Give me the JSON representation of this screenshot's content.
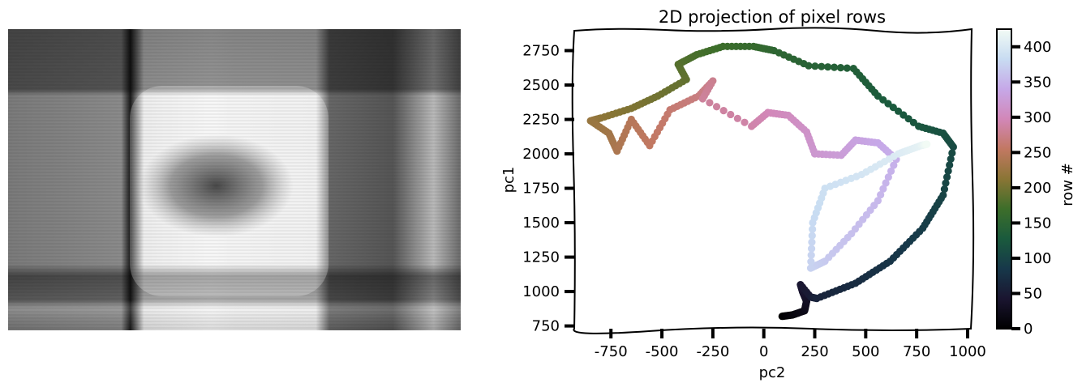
{
  "chart_data": [
    {
      "type": "image",
      "title": "",
      "description": "grayscale image"
    },
    {
      "type": "scatter",
      "title": "2D projection of pixel rows",
      "xlabel": "pc2",
      "ylabel": "pc1",
      "xlim": [
        -930,
        1020
      ],
      "ylim": [
        730,
        2900
      ],
      "xticks": [
        -750,
        -500,
        -250,
        0,
        250,
        500,
        750,
        1000
      ],
      "yticks": [
        750,
        1000,
        1250,
        1500,
        1750,
        2000,
        2250,
        2500,
        2750
      ],
      "colorbar": {
        "label": "row #",
        "range": [
          0,
          425
        ],
        "ticks": [
          0,
          50,
          100,
          150,
          200,
          250,
          300,
          350,
          400
        ],
        "colormap": "cubehelix"
      },
      "path_points": [
        {
          "row": 0,
          "x": 90,
          "y": 820
        },
        {
          "row": 10,
          "x": 140,
          "y": 830
        },
        {
          "row": 20,
          "x": 200,
          "y": 860
        },
        {
          "row": 30,
          "x": 210,
          "y": 930
        },
        {
          "row": 40,
          "x": 190,
          "y": 1000
        },
        {
          "row": 45,
          "x": 180,
          "y": 1050
        },
        {
          "row": 50,
          "x": 230,
          "y": 960
        },
        {
          "row": 60,
          "x": 260,
          "y": 950
        },
        {
          "row": 70,
          "x": 450,
          "y": 1060
        },
        {
          "row": 80,
          "x": 620,
          "y": 1220
        },
        {
          "row": 90,
          "x": 780,
          "y": 1460
        },
        {
          "row": 100,
          "x": 880,
          "y": 1700
        },
        {
          "row": 108,
          "x": 930,
          "y": 2050
        },
        {
          "row": 115,
          "x": 880,
          "y": 2150
        },
        {
          "row": 122,
          "x": 760,
          "y": 2200
        },
        {
          "row": 130,
          "x": 560,
          "y": 2420
        },
        {
          "row": 138,
          "x": 440,
          "y": 2620
        },
        {
          "row": 145,
          "x": 220,
          "y": 2640
        },
        {
          "row": 152,
          "x": 50,
          "y": 2750
        },
        {
          "row": 160,
          "x": -50,
          "y": 2780
        },
        {
          "row": 167,
          "x": -200,
          "y": 2780
        },
        {
          "row": 175,
          "x": -330,
          "y": 2720
        },
        {
          "row": 183,
          "x": -420,
          "y": 2650
        },
        {
          "row": 190,
          "x": -380,
          "y": 2540
        },
        {
          "row": 198,
          "x": -520,
          "y": 2420
        },
        {
          "row": 206,
          "x": -650,
          "y": 2330
        },
        {
          "row": 214,
          "x": -800,
          "y": 2260
        },
        {
          "row": 222,
          "x": -850,
          "y": 2240
        },
        {
          "row": 230,
          "x": -760,
          "y": 2150
        },
        {
          "row": 238,
          "x": -720,
          "y": 2020
        },
        {
          "row": 246,
          "x": -650,
          "y": 2250
        },
        {
          "row": 254,
          "x": -560,
          "y": 2060
        },
        {
          "row": 262,
          "x": -460,
          "y": 2320
        },
        {
          "row": 270,
          "x": -320,
          "y": 2420
        },
        {
          "row": 277,
          "x": -250,
          "y": 2530
        },
        {
          "row": 283,
          "x": -300,
          "y": 2400
        },
        {
          "row": 290,
          "x": -60,
          "y": 2200
        },
        {
          "row": 297,
          "x": 20,
          "y": 2300
        },
        {
          "row": 304,
          "x": 120,
          "y": 2280
        },
        {
          "row": 311,
          "x": 210,
          "y": 2160
        },
        {
          "row": 318,
          "x": 250,
          "y": 2000
        },
        {
          "row": 325,
          "x": 380,
          "y": 1990
        },
        {
          "row": 332,
          "x": 450,
          "y": 2100
        },
        {
          "row": 339,
          "x": 560,
          "y": 2080
        },
        {
          "row": 346,
          "x": 650,
          "y": 1960
        },
        {
          "row": 353,
          "x": 560,
          "y": 1660
        },
        {
          "row": 360,
          "x": 430,
          "y": 1420
        },
        {
          "row": 367,
          "x": 300,
          "y": 1220
        },
        {
          "row": 374,
          "x": 230,
          "y": 1170
        },
        {
          "row": 381,
          "x": 240,
          "y": 1500
        },
        {
          "row": 388,
          "x": 300,
          "y": 1750
        },
        {
          "row": 395,
          "x": 480,
          "y": 1850
        },
        {
          "row": 403,
          "x": 660,
          "y": 2000
        },
        {
          "row": 412,
          "x": 770,
          "y": 2060
        },
        {
          "row": 425,
          "x": 800,
          "y": 2070
        }
      ]
    }
  ]
}
